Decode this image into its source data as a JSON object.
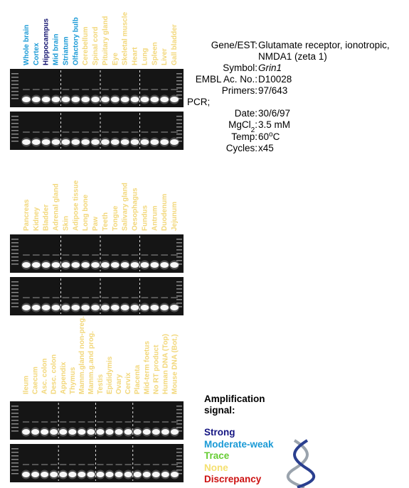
{
  "panels": [
    {
      "lanes": [
        {
          "text": "Whole brain",
          "color": "#1a9ad6"
        },
        {
          "text": "Cortex",
          "color": "#1a9ad6"
        },
        {
          "text": "Hippocampus",
          "color": "#141470"
        },
        {
          "text": "Mid brain",
          "color": "#1a9ad6"
        },
        {
          "text": "Striatum",
          "color": "#1a9ad6"
        },
        {
          "text": "Olfactory bulb",
          "color": "#1a9ad6"
        },
        {
          "text": "Cerebellum",
          "color": "#f2d77a"
        },
        {
          "text": "Spinal cord",
          "color": "#f2d77a"
        },
        {
          "text": "Pituitary gland",
          "color": "#f2d77a"
        },
        {
          "text": "Eye",
          "color": "#f2d77a"
        },
        {
          "text": "Skeletal muscle",
          "color": "#f2d77a"
        },
        {
          "text": "Heart",
          "color": "#f2d77a"
        },
        {
          "text": "Lung",
          "color": "#f2d77a"
        },
        {
          "text": "Spleen",
          "color": "#f2d77a"
        },
        {
          "text": "Liver",
          "color": "#f2d77a"
        },
        {
          "text": "Gall bladder",
          "color": "#f2d77a"
        }
      ]
    },
    {
      "lanes": [
        {
          "text": "Pancreas",
          "color": "#f2d77a"
        },
        {
          "text": "Kidney",
          "color": "#f2d77a"
        },
        {
          "text": "Bladder",
          "color": "#f2d77a"
        },
        {
          "text": "Adrenal gland",
          "color": "#f2d77a"
        },
        {
          "text": "Skin",
          "color": "#f2d77a"
        },
        {
          "text": "Adipose tissue",
          "color": "#f2d77a"
        },
        {
          "text": "Long bone",
          "color": "#f2d77a"
        },
        {
          "text": "Paw",
          "color": "#f2d77a"
        },
        {
          "text": "Teeth",
          "color": "#f2d77a"
        },
        {
          "text": "Tongue",
          "color": "#f2d77a"
        },
        {
          "text": "Salivary gland",
          "color": "#f2d77a"
        },
        {
          "text": "Oesophagus",
          "color": "#f2d77a"
        },
        {
          "text": "Fundus",
          "color": "#f2d77a"
        },
        {
          "text": "Antrum",
          "color": "#f2d77a"
        },
        {
          "text": "Duodenum",
          "color": "#f2d77a"
        },
        {
          "text": "Jejunum",
          "color": "#f2d77a"
        }
      ]
    },
    {
      "lanes": [
        {
          "text": "Ileum",
          "color": "#f2d77a"
        },
        {
          "text": "Caecum",
          "color": "#f2d77a"
        },
        {
          "text": "Asc. colon",
          "color": "#f2d77a"
        },
        {
          "text": "Desc. colon",
          "color": "#f2d77a"
        },
        {
          "text": "Appendix",
          "color": "#f2d77a"
        },
        {
          "text": "Thymus",
          "color": "#f2d77a"
        },
        {
          "text": "Mamm.gland non-preg.",
          "color": "#f2d77a"
        },
        {
          "text": "Mamm.g.and prog.",
          "color": "#f2d77a"
        },
        {
          "text": "Testis",
          "color": "#f2d77a"
        },
        {
          "text": "Epididymis",
          "color": "#f2d77a"
        },
        {
          "text": "Ovary",
          "color": "#f2d77a"
        },
        {
          "text": "Cervix",
          "color": "#f2d77a"
        },
        {
          "text": "Placenta",
          "color": "#f2d77a"
        },
        {
          "text": "Mid-term foetus",
          "color": "#f2d77a"
        },
        {
          "text": "No RT product",
          "color": "#f2d77a"
        },
        {
          "text": "Human DNA (Top)",
          "color": "#f2d77a"
        },
        {
          "text": "Mouse DNA (Bot.)",
          "color": "#f2d77a"
        }
      ]
    }
  ],
  "info": [
    {
      "label": [
        {
          "text": "Gene/EST:"
        }
      ],
      "value": [
        {
          "text": "Glutamate receptor, ionotropic,"
        },
        {
          "text": "NMDA1 (zeta 1)",
          "style": "newline"
        }
      ]
    },
    {
      "label": [
        {
          "text": "Symbol:"
        }
      ],
      "value": [
        {
          "text": "Grin1",
          "style": "italic"
        }
      ]
    },
    {
      "label": [
        {
          "text": "EMBL Ac. No.:"
        }
      ],
      "value": [
        {
          "text": "D10028"
        }
      ]
    },
    {
      "label": [
        {
          "text": "Primers:"
        }
      ],
      "value": [
        {
          "text": "97/643"
        }
      ]
    },
    {
      "label": [
        {
          "text": "PCR;"
        }
      ]
    },
    {
      "label": [
        {
          "text": "Date:"
        }
      ],
      "value": [
        {
          "text": "30/6/97"
        }
      ]
    },
    {
      "label": [
        {
          "text": "MgCl"
        },
        {
          "text": "2",
          "style": "sub"
        },
        {
          "text": ":"
        }
      ],
      "value": [
        {
          "text": "3.5 mM"
        }
      ]
    },
    {
      "label": [
        {
          "text": "Temp:"
        }
      ],
      "value": [
        {
          "text": "60"
        },
        {
          "text": "o",
          "style": "sup"
        },
        {
          "text": "C"
        }
      ]
    },
    {
      "label": [
        {
          "text": "Cycles:"
        }
      ],
      "value": [
        {
          "text": "x45"
        }
      ]
    }
  ],
  "legend": {
    "title": [
      "Amplification",
      "signal:"
    ],
    "items": [
      {
        "text": "Strong",
        "color": "#141482"
      },
      {
        "text": "Moderate-weak",
        "color": "#1a9ad6"
      },
      {
        "text": "Trace",
        "color": "#66cc33"
      },
      {
        "text": "None",
        "color": "#f5e070"
      },
      {
        "text": "Discrepancy",
        "color": "#cc1111"
      }
    ]
  }
}
